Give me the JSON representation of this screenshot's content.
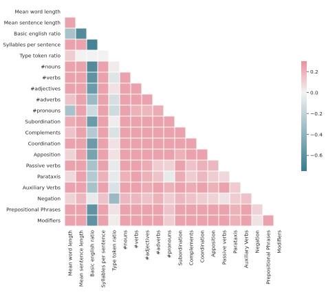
{
  "chart_data": {
    "type": "heatmap",
    "title": "",
    "xlabel": "",
    "ylabel": "",
    "mask": "upper-triangle-including-diagonal",
    "colormap": {
      "min": -0.75,
      "max": 0.3,
      "negative_color": "#3a7b8d",
      "center_color": "#f2f2f2",
      "positive_color": "#e8929e"
    },
    "colorbar": {
      "ticks": [
        0.2,
        0.0,
        -0.2,
        -0.4,
        -0.6
      ],
      "tick_labels": [
        "0.2",
        "0.0",
        "−0.2",
        "−0.4",
        "−0.6"
      ]
    },
    "labels": [
      "Mean word length",
      "Mean sentence length",
      "Basic english ratio",
      "Syllables per sentence",
      "Type token ratio",
      "#nouns",
      "#verbs",
      "#adjectives",
      "#adverbs",
      "#pronouns",
      "Subordination",
      "Complements",
      "Coordination",
      "Apposition",
      "Passive verbs",
      "Parataxis",
      "Auxiliary Verbs",
      "Negation",
      "Prepositional Phrases",
      "Modifiers"
    ],
    "matrix": [
      [],
      [
        0.25
      ],
      [
        -0.3,
        -0.65
      ],
      [
        0.25,
        0.25,
        -0.7
      ],
      [
        0.12,
        0.0,
        0.0,
        0.0
      ],
      [
        0.25,
        0.25,
        -0.65,
        0.25,
        0.02
      ],
      [
        0.25,
        0.25,
        -0.6,
        0.25,
        -0.08,
        0.25
      ],
      [
        0.25,
        0.25,
        -0.55,
        0.25,
        0.05,
        0.25,
        0.25
      ],
      [
        0.15,
        0.25,
        -0.35,
        0.25,
        -0.12,
        0.25,
        0.25,
        0.25
      ],
      [
        -0.3,
        0.25,
        -0.15,
        0.25,
        -0.15,
        0.25,
        0.2,
        0.18,
        0.22
      ],
      [
        0.22,
        0.25,
        -0.55,
        0.25,
        0.02,
        0.25,
        0.25,
        0.25,
        0.25,
        0.25
      ],
      [
        0.15,
        0.25,
        -0.25,
        0.25,
        -0.1,
        0.25,
        0.25,
        0.25,
        0.25,
        0.25,
        0.25
      ],
      [
        0.25,
        0.25,
        -0.55,
        0.25,
        0.05,
        0.25,
        0.25,
        0.25,
        0.25,
        0.25,
        0.25,
        0.25
      ],
      [
        0.1,
        0.25,
        -0.5,
        0.25,
        0.05,
        0.25,
        0.25,
        0.25,
        0.25,
        0.25,
        0.2,
        0.25,
        0.25
      ],
      [
        0.25,
        0.25,
        -0.3,
        0.25,
        -0.05,
        0.25,
        0.25,
        0.22,
        0.12,
        0.1,
        0.25,
        0.15,
        0.2,
        0.18
      ],
      [
        0.08,
        0.25,
        -0.25,
        0.2,
        -0.05,
        0.2,
        0.25,
        0.2,
        0.15,
        -0.05,
        0.22,
        0.12,
        0.18,
        0.12,
        0.08
      ],
      [
        0.25,
        0.25,
        -0.3,
        0.25,
        -0.1,
        0.25,
        0.25,
        0.22,
        0.25,
        0.2,
        0.25,
        0.22,
        0.25,
        0.2,
        0.25,
        0.12
      ],
      [
        0.1,
        0.18,
        -0.05,
        0.15,
        -0.35,
        0.18,
        0.18,
        0.15,
        0.2,
        0.12,
        0.18,
        0.15,
        0.12,
        0.1,
        0.05,
        0.12,
        0.15
      ],
      [
        0.25,
        0.25,
        -0.6,
        0.25,
        0.05,
        0.25,
        0.25,
        0.25,
        0.25,
        0.15,
        0.25,
        0.25,
        0.25,
        0.25,
        0.25,
        0.2,
        0.25,
        0.1
      ],
      [
        0.25,
        0.25,
        -0.6,
        0.25,
        0.02,
        0.25,
        0.25,
        0.25,
        0.25,
        0.12,
        0.25,
        0.25,
        0.25,
        0.25,
        0.25,
        0.2,
        0.25,
        0.05,
        0.25
      ]
    ]
  }
}
